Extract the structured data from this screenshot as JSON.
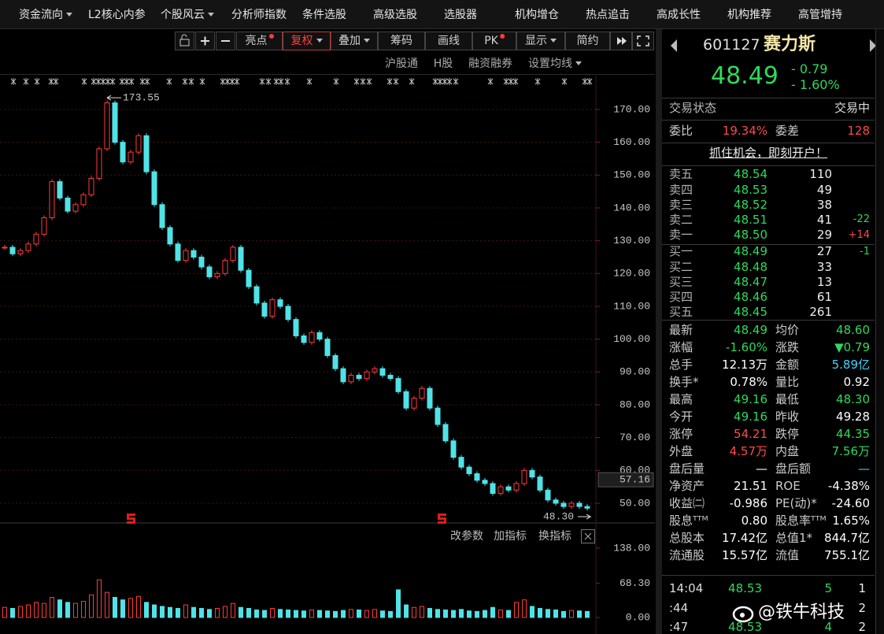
{
  "menu": [
    {
      "label": "资金流向",
      "dropdown": true
    },
    {
      "label": "L2核心内参"
    },
    {
      "label": "个股风云",
      "dropdown": true
    },
    {
      "label": "分析师指数"
    },
    {
      "label": "条件选股"
    },
    {
      "label": "高级选股"
    },
    {
      "label": "选股器"
    },
    {
      "label": "机构增仓"
    },
    {
      "label": "热点追击"
    },
    {
      "label": "高成长性"
    },
    {
      "label": "机构推荐"
    },
    {
      "label": "高管增持"
    }
  ],
  "toolbar": [
    {
      "label": "亮点",
      "dot": true
    },
    {
      "label": "复权",
      "dropdown": true,
      "active": true
    },
    {
      "label": "叠加",
      "dropdown": true
    },
    {
      "label": "筹码"
    },
    {
      "label": "画线"
    },
    {
      "label": "PK",
      "dot": true
    },
    {
      "label": "显示",
      "dropdown": true
    },
    {
      "label": "简约"
    }
  ],
  "subtoolbar": [
    {
      "label": "沪股通"
    },
    {
      "label": "H股"
    },
    {
      "label": "融资融券"
    },
    {
      "label": "设置均线",
      "dropdown": true
    }
  ],
  "indicator_toolbar": [
    "改参数",
    "加指标",
    "换指标"
  ],
  "chart_data": [
    {
      "type": "line",
      "values": [
        128,
        126,
        127,
        129,
        132,
        137,
        148,
        143,
        139,
        141,
        144,
        149,
        158,
        172,
        160,
        154,
        157,
        162,
        151,
        141,
        134,
        129,
        124,
        127,
        125,
        122,
        119,
        120,
        124,
        128,
        121,
        116,
        111,
        107,
        112,
        110,
        106,
        101,
        99,
        102,
        100,
        95,
        91,
        87,
        89,
        88,
        90,
        91,
        89,
        88,
        84,
        79,
        82,
        85,
        79,
        74,
        69,
        64,
        61,
        59,
        57,
        56,
        53,
        55,
        54,
        56,
        60,
        58,
        54,
        51,
        50,
        49,
        50,
        49,
        48.49
      ],
      "up_color": "#ff3b3b",
      "down_color": "#4fe3e8",
      "ylim": [
        45,
        180
      ],
      "yticks": [
        {
          "value": 50,
          "label": "50.00"
        },
        {
          "value": 60,
          "label": "60.00"
        },
        {
          "value": 70,
          "label": "70.00"
        },
        {
          "value": 80,
          "label": "80.00"
        },
        {
          "value": 90,
          "label": "90.00"
        },
        {
          "value": 100,
          "label": "100.00"
        },
        {
          "value": 110,
          "label": "110.00"
        },
        {
          "value": 120,
          "label": "120.00"
        },
        {
          "value": 130,
          "label": "130.00"
        },
        {
          "value": 140,
          "label": "140.00"
        },
        {
          "value": 150,
          "label": "150.00"
        },
        {
          "value": 160,
          "label": "160.00"
        },
        {
          "value": 170,
          "label": "170.00"
        }
      ],
      "grid": true,
      "high_label": 173.55,
      "low_label": {
        "value": 48.3,
        "label": "48.30"
      },
      "cursor_label": 57.16
    },
    {
      "type": "bar",
      "values": [
        20,
        18,
        22,
        25,
        30,
        28,
        40,
        35,
        30,
        28,
        32,
        45,
        75,
        50,
        40,
        35,
        38,
        42,
        30,
        25,
        22,
        20,
        18,
        25,
        20,
        18,
        16,
        18,
        22,
        28,
        20,
        18,
        15,
        14,
        18,
        16,
        15,
        14,
        13,
        15,
        14,
        13,
        12,
        14,
        16,
        15,
        14,
        16,
        13,
        12,
        55,
        25,
        20,
        22,
        18,
        16,
        15,
        14,
        16,
        13,
        12,
        14,
        20,
        15,
        14,
        30,
        35,
        22,
        18,
        16,
        15,
        12,
        14,
        13,
        12
      ],
      "ylim": [
        0,
        150
      ],
      "yticks": [
        {
          "value": 0,
          "label": "0.00"
        },
        {
          "value": 68.3,
          "label": "68.30"
        },
        {
          "value": 138,
          "label": "138.00"
        }
      ]
    }
  ],
  "quote": {
    "code": "601127",
    "name": "赛力斯",
    "price": "48.49",
    "change": "- 0.79",
    "change_pct": "- 1.60%",
    "status_label": "交易状态",
    "status": "交易中",
    "weibi": [
      {
        "label": "委比",
        "value": "19.34%",
        "color": "#ff4a4a"
      },
      {
        "label": "委差",
        "value": "128",
        "color": "#ff4a4a"
      }
    ],
    "promo": "抓住机会，即刻开户！",
    "asks": [
      {
        "label": "卖五",
        "price": "48.54",
        "volume": "110"
      },
      {
        "label": "卖四",
        "price": "48.53",
        "volume": "49"
      },
      {
        "label": "卖三",
        "price": "48.52",
        "volume": "38"
      },
      {
        "label": "卖二",
        "price": "48.51",
        "volume": "41",
        "change": "-22",
        "color": "#2fd95a"
      },
      {
        "label": "卖一",
        "price": "48.50",
        "volume": "29",
        "change": "+14",
        "color": "#ff4a4a"
      }
    ],
    "bids": [
      {
        "label": "买一",
        "price": "48.49",
        "volume": "27",
        "change": "-1",
        "color": "#2fd95a"
      },
      {
        "label": "买二",
        "price": "48.48",
        "volume": "33"
      },
      {
        "label": "买三",
        "price": "48.47",
        "volume": "13"
      },
      {
        "label": "买四",
        "price": "48.46",
        "volume": "61"
      },
      {
        "label": "买五",
        "price": "48.45",
        "volume": "261"
      }
    ],
    "stats": [
      [
        {
          "label": "最新",
          "value": "48.49",
          "color": "#2fd95a"
        },
        {
          "label": "均价",
          "value": "48.60",
          "color": "#2fd95a"
        }
      ],
      [
        {
          "label": "涨幅",
          "value": "-1.60%",
          "color": "#2fd95a"
        },
        {
          "label": "涨跌",
          "value": "▼0.79",
          "color": "#2fd95a"
        }
      ],
      [
        {
          "label": "总手",
          "value": "12.13万",
          "color": "#ffffff"
        },
        {
          "label": "金额",
          "value": "5.89亿",
          "color": "#3fd4ff"
        }
      ],
      [
        {
          "label": "换手*",
          "value": "0.78%",
          "color": "#ffffff"
        },
        {
          "label": "量比",
          "value": "0.92",
          "color": "#ffffff"
        }
      ],
      [
        {
          "label": "最高",
          "value": "49.16",
          "color": "#2fd95a"
        },
        {
          "label": "最低",
          "value": "48.30",
          "color": "#2fd95a"
        }
      ],
      [
        {
          "label": "今开",
          "value": "49.16",
          "color": "#2fd95a"
        },
        {
          "label": "昨收",
          "value": "49.28",
          "color": "#ffffff"
        }
      ],
      [
        {
          "label": "涨停",
          "value": "54.21",
          "color": "#ff4a4a"
        },
        {
          "label": "跌停",
          "value": "44.35",
          "color": "#2fd95a"
        }
      ],
      [
        {
          "label": "外盘",
          "value": "4.57万",
          "color": "#ff4a4a"
        },
        {
          "label": "内盘",
          "value": "7.56万",
          "color": "#2fd95a"
        }
      ],
      [
        {
          "label": "盘后量",
          "value": "—",
          "color": "#ffffff"
        },
        {
          "label": "盘后额",
          "value": "—",
          "color": "#3fd4ff"
        }
      ],
      [
        {
          "label": "净资产",
          "value": "21.51",
          "color": "#ffffff"
        },
        {
          "label": "ROE",
          "value": "-4.38%",
          "color": "#ffffff"
        }
      ],
      [
        {
          "label": "收益㈡",
          "value": "-0.986",
          "color": "#ffffff"
        },
        {
          "label": "PE(动)*",
          "value": "-24.60",
          "color": "#ffffff"
        }
      ],
      [
        {
          "label": "股息ᵀᵀᴹ",
          "value": "0.80",
          "color": "#ffffff"
        },
        {
          "label": "股息率ᵀᵀᴹ",
          "value": "1.65%",
          "color": "#ffffff"
        }
      ],
      [
        {
          "label": "总股本",
          "value": "17.42亿",
          "color": "#ffffff"
        },
        {
          "label": "总值1*",
          "value": "844.7亿",
          "color": "#ffffff"
        }
      ],
      [
        {
          "label": "流通股",
          "value": "15.57亿",
          "color": "#ffffff"
        },
        {
          "label": "流值",
          "value": "755.1亿",
          "color": "#ffffff"
        }
      ]
    ],
    "ticks": [
      {
        "time": "14:04",
        "price": "48.53",
        "volume": "5",
        "count": "1"
      },
      {
        "time": ":44",
        "count": "2"
      },
      {
        "time": ":47",
        "price": "48.53",
        "volume": "4",
        "count": "2"
      }
    ]
  },
  "watermark": "@铁牛科技"
}
